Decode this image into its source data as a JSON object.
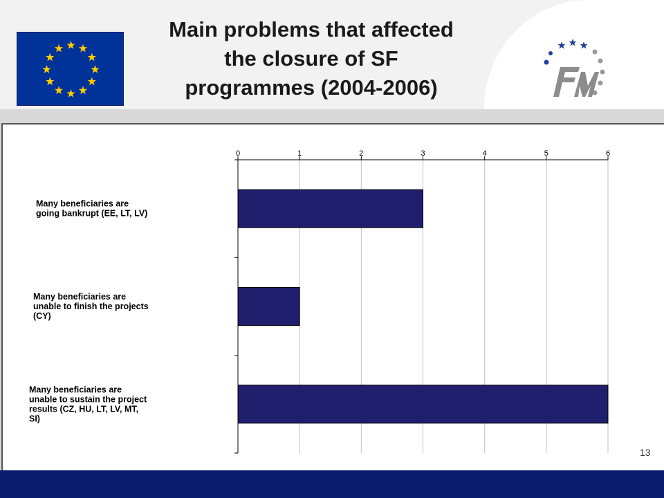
{
  "slide": {
    "title": "Main problems that affected\nthe closure of SF\nprogrammes (2004-2006)",
    "page_number": "13"
  },
  "colors": {
    "bar": "#1f1f6e",
    "footer": "#0b1c6e",
    "eu_blue": "#003399",
    "eu_star": "#ffcc00",
    "logo_blue": "#1f3f99",
    "logo_grey": "#999999"
  },
  "icons": [
    "eu-flag-icon",
    "fm-logo-icon"
  ],
  "chart_data": {
    "type": "bar",
    "orientation": "horizontal",
    "categories": [
      [
        "Many beneficiaries are",
        "going bankrupt (EE, LT, LV)"
      ],
      [
        "Many beneficiaries are",
        "unable to finish the projects",
        "(CY)"
      ],
      [
        "Many beneficiaries are",
        "unable to sustain the project",
        "results (CZ, HU, LT, LV, MT,",
        "SI)"
      ]
    ],
    "values": [
      3,
      1,
      6
    ],
    "xlim": [
      0,
      6
    ],
    "xticks": [
      "0",
      "1",
      "2",
      "3",
      "4",
      "5",
      "6"
    ],
    "grid": true,
    "axis_position": "top",
    "title": "",
    "xlabel": "",
    "ylabel": ""
  }
}
